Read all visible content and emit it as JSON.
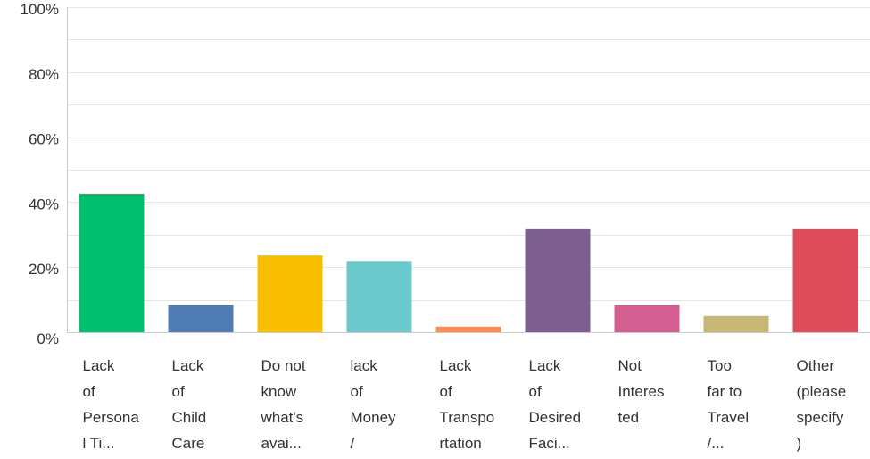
{
  "chart_data": {
    "type": "bar",
    "title": "",
    "xlabel": "",
    "ylabel": "",
    "ylim": [
      0,
      100
    ],
    "y_ticks": [
      "0%",
      "20%",
      "40%",
      "60%",
      "80%",
      "100%"
    ],
    "y_tick_values": [
      0,
      20,
      40,
      60,
      80,
      100
    ],
    "grid": true,
    "categories": [
      "Lack of Persona l Ti...",
      "Lack of Child Care",
      "Do not know what's avai...",
      "lack of Money /",
      "Lack of Transpo rtation",
      "Lack of Desired Faci...",
      "Not Interes ted",
      "Too far to Travel /...",
      "Other (please specify )"
    ],
    "category_lines": [
      [
        "Lack",
        "of",
        "Persona",
        "l Ti..."
      ],
      [
        "Lack",
        "of",
        "Child",
        "Care"
      ],
      [
        "Do not",
        "know",
        "what's",
        "avai..."
      ],
      [
        "lack",
        "of",
        "Money",
        "/"
      ],
      [
        "Lack",
        "of",
        "Transpo",
        "rtation"
      ],
      [
        "Lack",
        "of",
        "Desired",
        "Faci..."
      ],
      [
        "Not",
        "Interes",
        "ted"
      ],
      [
        "Too",
        "far to",
        "Travel",
        "/..."
      ],
      [
        "Other",
        "(please",
        "specify",
        ")"
      ]
    ],
    "values": [
      42.6,
      8.4,
      23.6,
      21.9,
      1.7,
      31.9,
      8.4,
      5.0,
      31.9
    ],
    "colors": [
      "#00bf6f",
      "#507cb6",
      "#f9be00",
      "#6bc8cd",
      "#ff8b4f",
      "#7d5e90",
      "#d25f90",
      "#c8b675",
      "#dd4c5a"
    ]
  }
}
